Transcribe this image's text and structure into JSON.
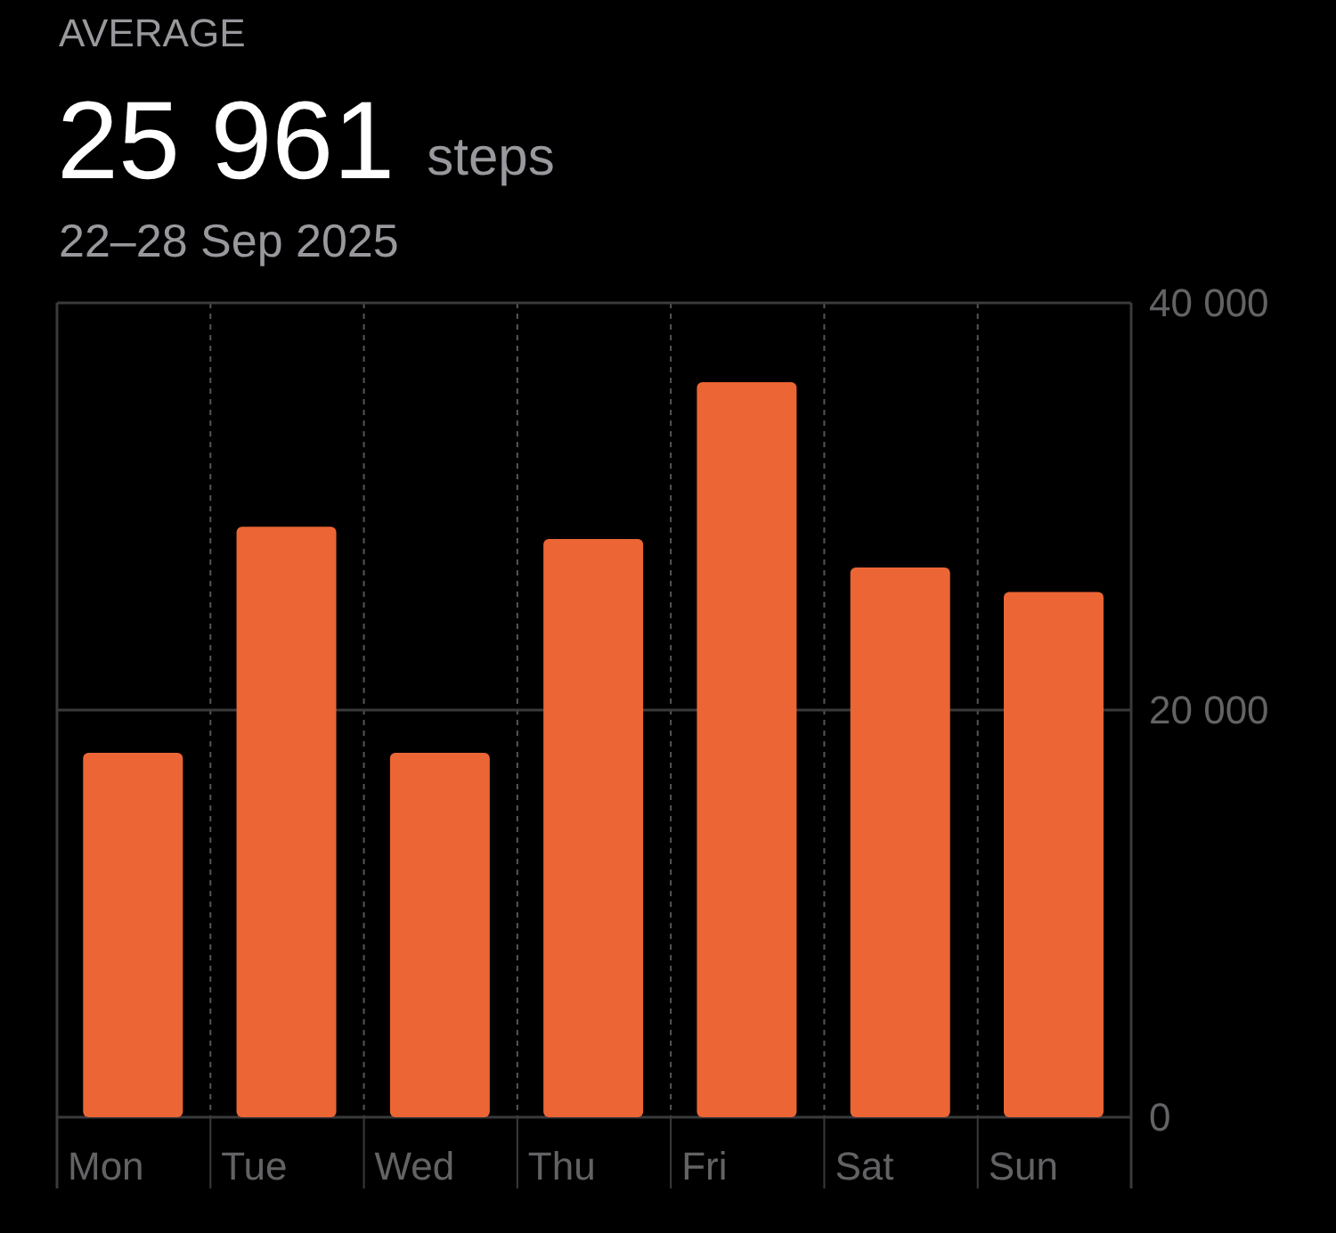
{
  "chart_data": {
    "type": "bar",
    "title": "AVERAGE",
    "annotations": [
      "25 961",
      "steps"
    ],
    "subtitle": "22–28 Sep 2025",
    "categories": [
      "Mon",
      "Tue",
      "Wed",
      "Thu",
      "Fri",
      "Sat",
      "Sun"
    ],
    "values": [
      17900,
      29000,
      17900,
      28400,
      36100,
      27000,
      25800
    ],
    "color": "#ec6535",
    "ylim": [
      0,
      40000
    ],
    "yticks": [
      {
        "value": 0,
        "label": "0"
      },
      {
        "value": 20000,
        "label": "20 000"
      },
      {
        "value": 40000,
        "label": "40 000"
      }
    ],
    "grid": true
  }
}
